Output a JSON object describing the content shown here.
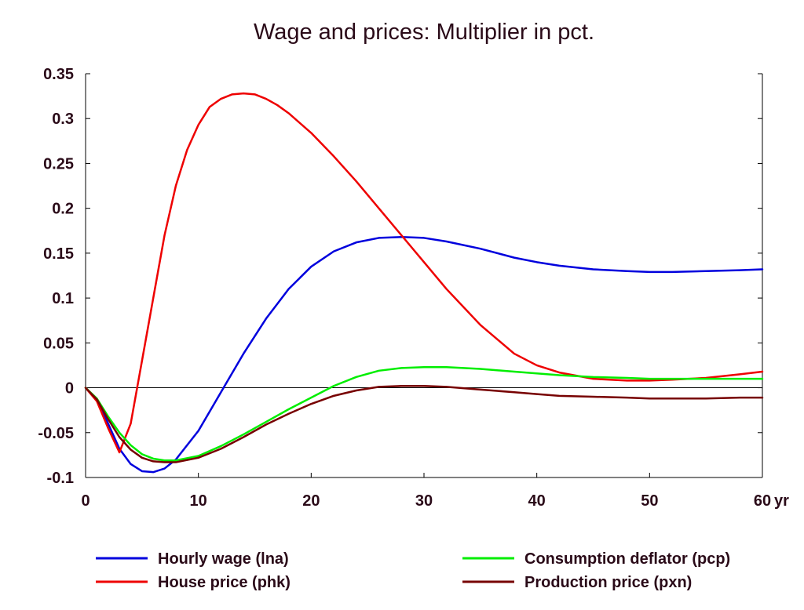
{
  "chart_data": {
    "type": "line",
    "title": "Wage and prices: Multiplier in pct.",
    "xlabel": "",
    "ylabel": "",
    "x_unit_label": "yr",
    "xlim": [
      0,
      60
    ],
    "ylim": [
      -0.1,
      0.35
    ],
    "x_ticks": [
      0,
      10,
      20,
      30,
      40,
      50,
      60
    ],
    "x_tick_labels": [
      "0",
      "10",
      "20",
      "30",
      "40",
      "50",
      "60"
    ],
    "y_ticks": [
      0.35,
      0.3,
      0.25,
      0.2,
      0.15,
      0.1,
      0.05,
      0,
      -0.05,
      -0.1
    ],
    "y_tick_labels": [
      "0.35",
      "0.3",
      "0.25",
      "0.2",
      "0.15",
      "0.1",
      "0.05",
      "0",
      "-0.05",
      "-0.1"
    ],
    "zero_line": true,
    "grid": false,
    "legend_position": "bottom",
    "series": [
      {
        "name": "Hourly wage (lna)",
        "color": "#0000dd",
        "x": [
          0,
          1,
          2,
          3,
          4,
          5,
          6,
          7,
          8,
          10,
          12,
          14,
          16,
          18,
          20,
          22,
          24,
          26,
          28,
          30,
          32,
          35,
          38,
          40,
          42,
          45,
          48,
          50,
          52,
          55,
          58,
          60
        ],
        "y": [
          0,
          -0.013,
          -0.04,
          -0.068,
          -0.085,
          -0.093,
          -0.094,
          -0.09,
          -0.08,
          -0.048,
          -0.005,
          0.038,
          0.077,
          0.11,
          0.135,
          0.152,
          0.162,
          0.167,
          0.168,
          0.167,
          0.163,
          0.155,
          0.145,
          0.14,
          0.136,
          0.132,
          0.13,
          0.129,
          0.129,
          0.13,
          0.131,
          0.132
        ]
      },
      {
        "name": "House price (phk)",
        "color": "#ee0000",
        "x": [
          0,
          1,
          2,
          3,
          4,
          5,
          6,
          7,
          8,
          9,
          10,
          11,
          12,
          13,
          14,
          15,
          16,
          17,
          18,
          20,
          22,
          24,
          26,
          28,
          30,
          32,
          35,
          38,
          40,
          42,
          45,
          48,
          50,
          52,
          55,
          58,
          60
        ],
        "y": [
          0,
          -0.015,
          -0.045,
          -0.072,
          -0.04,
          0.03,
          0.1,
          0.17,
          0.225,
          0.265,
          0.293,
          0.313,
          0.322,
          0.327,
          0.328,
          0.327,
          0.322,
          0.315,
          0.306,
          0.284,
          0.258,
          0.23,
          0.2,
          0.17,
          0.14,
          0.11,
          0.07,
          0.038,
          0.025,
          0.017,
          0.01,
          0.008,
          0.008,
          0.009,
          0.011,
          0.015,
          0.018
        ]
      },
      {
        "name": "Consumption deflator (pcp)",
        "color": "#00ee00",
        "x": [
          0,
          1,
          2,
          3,
          4,
          5,
          6,
          7,
          8,
          10,
          12,
          14,
          16,
          18,
          20,
          22,
          24,
          26,
          28,
          30,
          32,
          35,
          38,
          40,
          42,
          45,
          48,
          50,
          52,
          55,
          58,
          60
        ],
        "y": [
          0,
          -0.012,
          -0.032,
          -0.05,
          -0.064,
          -0.074,
          -0.079,
          -0.081,
          -0.081,
          -0.076,
          -0.065,
          -0.052,
          -0.038,
          -0.024,
          -0.011,
          0.002,
          0.012,
          0.019,
          0.022,
          0.023,
          0.023,
          0.021,
          0.018,
          0.016,
          0.014,
          0.012,
          0.011,
          0.01,
          0.01,
          0.01,
          0.01,
          0.01
        ]
      },
      {
        "name": "Production price (pxn)",
        "color": "#770000",
        "x": [
          0,
          1,
          2,
          3,
          4,
          5,
          6,
          7,
          8,
          10,
          12,
          14,
          16,
          18,
          20,
          22,
          24,
          26,
          28,
          30,
          32,
          35,
          38,
          40,
          42,
          45,
          48,
          50,
          52,
          55,
          58,
          60
        ],
        "y": [
          0,
          -0.013,
          -0.035,
          -0.055,
          -0.069,
          -0.078,
          -0.082,
          -0.083,
          -0.083,
          -0.078,
          -0.068,
          -0.055,
          -0.041,
          -0.029,
          -0.018,
          -0.009,
          -0.003,
          0.001,
          0.002,
          0.002,
          0.001,
          -0.002,
          -0.005,
          -0.007,
          -0.009,
          -0.01,
          -0.011,
          -0.012,
          -0.012,
          -0.012,
          -0.011,
          -0.011
        ]
      }
    ]
  }
}
